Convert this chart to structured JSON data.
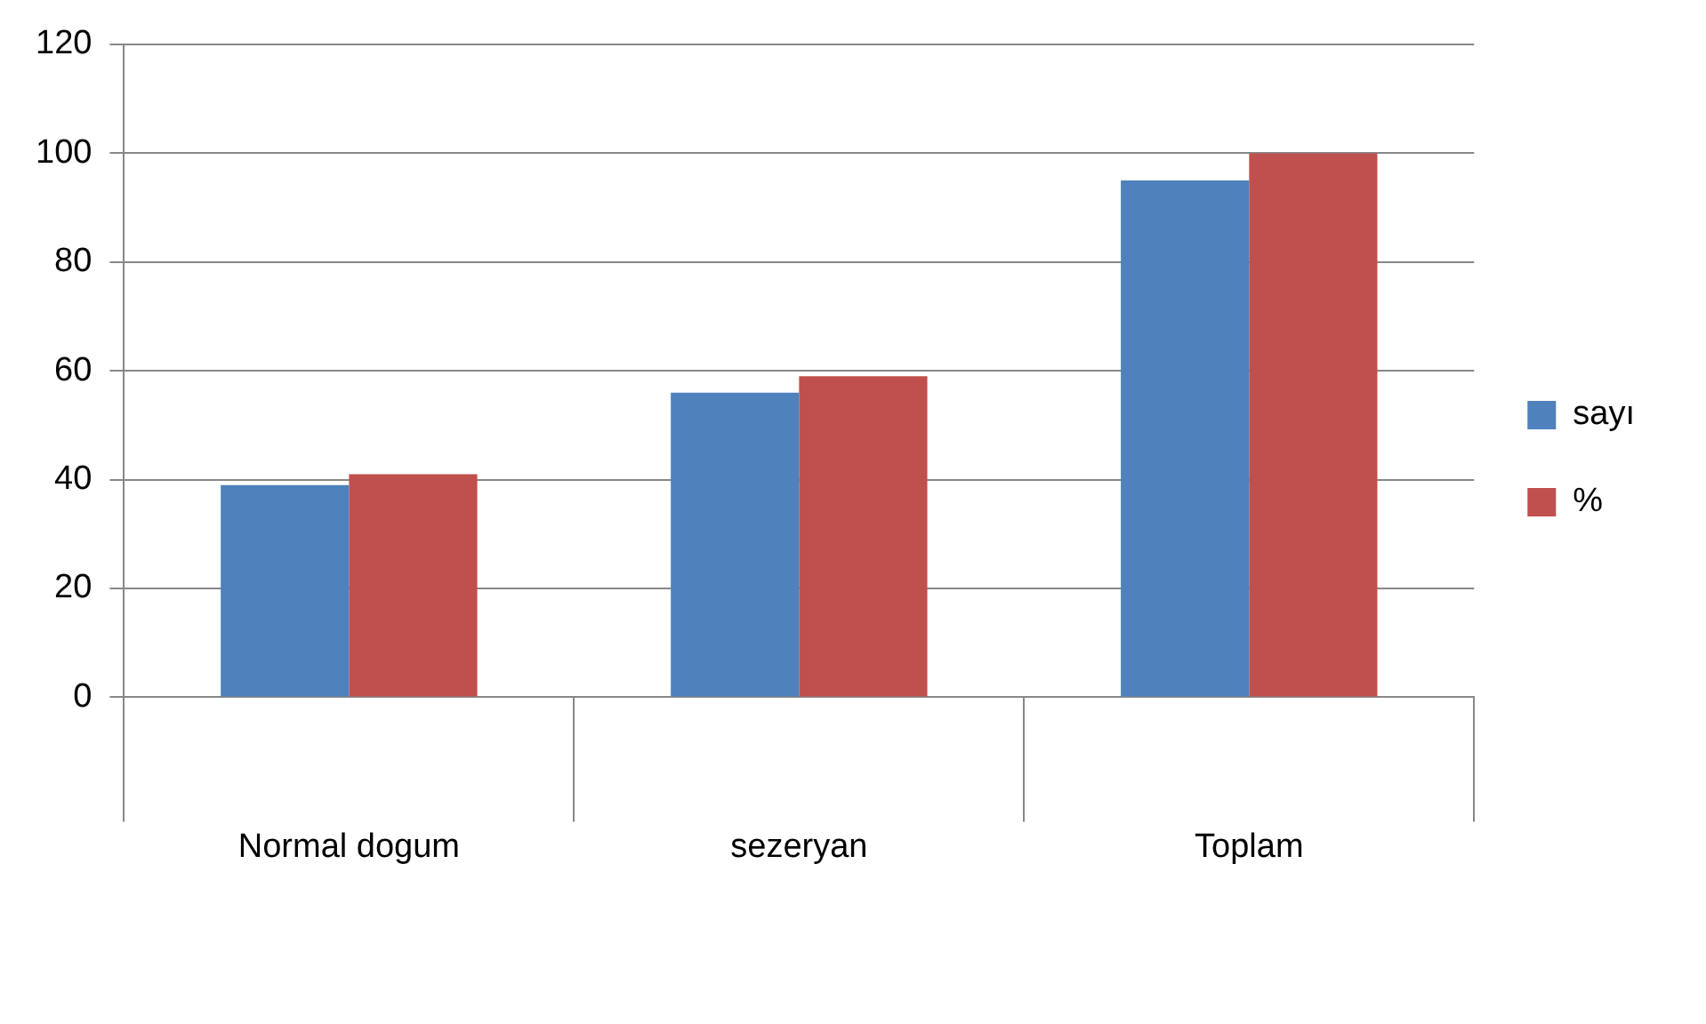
{
  "chart_data": {
    "type": "bar",
    "categories": [
      "Normal dogum",
      "sezeryan",
      "Toplam"
    ],
    "series": [
      {
        "name": "sayı",
        "color": "#4f81bd",
        "values": [
          39,
          56,
          95
        ]
      },
      {
        "name": "%",
        "color": "#c0504d",
        "values": [
          41,
          59,
          100
        ]
      }
    ],
    "ylim": [
      0,
      120
    ],
    "yticks": [
      0,
      20,
      40,
      60,
      80,
      100,
      120
    ],
    "grid": "y",
    "legend": "right"
  }
}
